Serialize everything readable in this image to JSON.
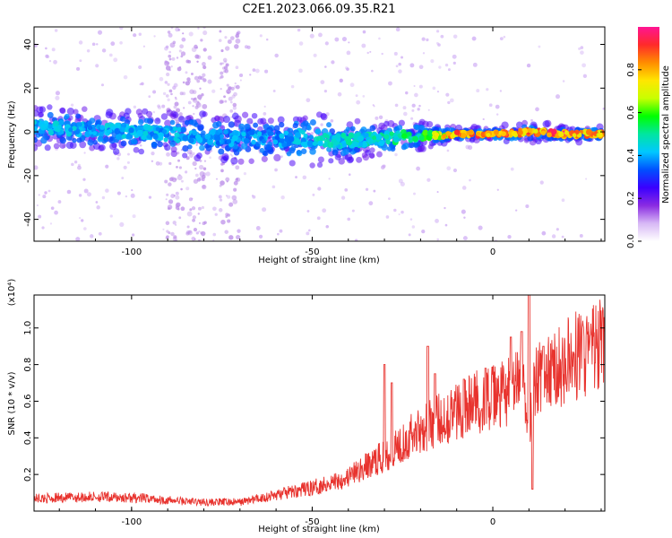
{
  "figure": {
    "title": "C2E1.2023.066.09.35.R21"
  },
  "chart_data": [
    {
      "type": "heatmap",
      "xlabel": "Height of straight line (km)",
      "ylabel": "Frequency (Hz)",
      "xlim": [
        -127,
        31
      ],
      "ylim": [
        -50,
        48
      ],
      "x_ticks": [
        "-100",
        "-50",
        "0"
      ],
      "y_ticks": [
        "-40",
        "-20",
        "0",
        "20",
        "40"
      ],
      "colorbar": {
        "label": "Normalized spectral amplitude",
        "range": [
          0.0,
          1.0
        ],
        "ticks": [
          "0.0",
          "0.2",
          "0.4",
          "0.6",
          "0.8"
        ],
        "colors": [
          "#ffffff",
          "#d7b8f5",
          "#8a2be2",
          "#3a00ff",
          "#0050ff",
          "#00c8ff",
          "#00e6a0",
          "#00ff00",
          "#c8ff00",
          "#ffe600",
          "#ff8c00",
          "#ff2a2a",
          "#ff1493"
        ]
      },
      "band": {
        "center_hz": [
          [
            -127,
            2
          ],
          [
            -110,
            1
          ],
          [
            -100,
            0
          ],
          [
            -90,
            -1
          ],
          [
            -80,
            -2
          ],
          [
            -70,
            -3
          ],
          [
            -60,
            -3
          ],
          [
            -50,
            -3
          ],
          [
            -40,
            -4
          ],
          [
            -30,
            -3
          ],
          [
            -22,
            -2
          ],
          [
            -10,
            -1
          ],
          [
            0,
            -1
          ],
          [
            10,
            0
          ],
          [
            20,
            -1
          ],
          [
            31,
            -1
          ]
        ],
        "halfwidth_hz": [
          [
            -127,
            6
          ],
          [
            -100,
            6
          ],
          [
            -60,
            7
          ],
          [
            -50,
            8
          ],
          [
            -40,
            6
          ],
          [
            -25,
            5
          ],
          [
            -20,
            4
          ],
          [
            -10,
            2
          ],
          [
            0,
            2
          ],
          [
            10,
            3
          ],
          [
            31,
            2
          ]
        ],
        "amplitude": [
          [
            -127,
            0.35
          ],
          [
            -100,
            0.35
          ],
          [
            -60,
            0.32
          ],
          [
            -50,
            0.38
          ],
          [
            -30,
            0.42
          ],
          [
            -20,
            0.5
          ],
          [
            -10,
            0.85
          ],
          [
            0,
            0.9
          ],
          [
            10,
            0.85
          ],
          [
            20,
            0.9
          ],
          [
            31,
            0.8
          ]
        ]
      },
      "scatter_columns_km": [
        -88,
        -82,
        -73
      ]
    },
    {
      "type": "line",
      "xlabel": "Height of straight line (km)",
      "ylabel": "SNR (10 * v/v)",
      "y_multiplier": "(x10⁴)",
      "xlim": [
        -127,
        31
      ],
      "ylim": [
        0.0,
        1.18
      ],
      "x_ticks": [
        "-100",
        "-50",
        "0"
      ],
      "y_ticks": [
        "0.2",
        "0.4",
        "0.6",
        "0.8",
        "1.0"
      ],
      "color": "#e8332e",
      "envelope": [
        [
          -127,
          0.06
        ],
        [
          -110,
          0.07
        ],
        [
          -95,
          0.06
        ],
        [
          -90,
          0.05
        ],
        [
          -80,
          0.04
        ],
        [
          -70,
          0.04
        ],
        [
          -60,
          0.08
        ],
        [
          -50,
          0.12
        ],
        [
          -40,
          0.18
        ],
        [
          -30,
          0.3
        ],
        [
          -25,
          0.38
        ],
        [
          -20,
          0.45
        ],
        [
          -15,
          0.5
        ],
        [
          -10,
          0.55
        ],
        [
          -5,
          0.6
        ],
        [
          0,
          0.62
        ],
        [
          5,
          0.66
        ],
        [
          8,
          0.7
        ],
        [
          10,
          0.5
        ],
        [
          12,
          0.72
        ],
        [
          15,
          0.75
        ],
        [
          20,
          0.82
        ],
        [
          25,
          0.88
        ],
        [
          31,
          0.92
        ]
      ],
      "spikes": [
        [
          -30,
          0.8
        ],
        [
          -28,
          0.7
        ],
        [
          -18,
          0.9
        ],
        [
          -16,
          0.75
        ],
        [
          -8,
          0.72
        ],
        [
          -2,
          0.78
        ],
        [
          5,
          0.95
        ],
        [
          8,
          0.98
        ],
        [
          10,
          1.18
        ],
        [
          11,
          0.12
        ],
        [
          14,
          0.9
        ]
      ]
    }
  ]
}
